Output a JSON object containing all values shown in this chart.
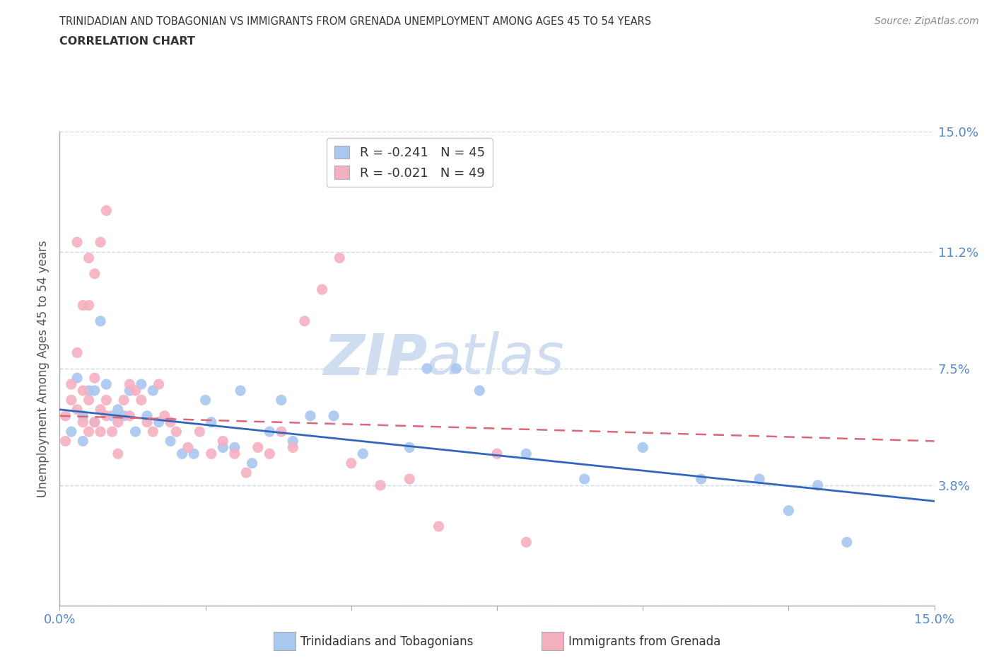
{
  "title_line1": "TRINIDADIAN AND TOBAGONIAN VS IMMIGRANTS FROM GRENADA UNEMPLOYMENT AMONG AGES 45 TO 54 YEARS",
  "title_line2": "CORRELATION CHART",
  "source_text": "Source: ZipAtlas.com",
  "ylabel": "Unemployment Among Ages 45 to 54 years",
  "xlim": [
    0.0,
    0.15
  ],
  "ylim": [
    0.0,
    0.15
  ],
  "ytick_values": [
    0.038,
    0.075,
    0.112,
    0.15
  ],
  "ytick_labels": [
    "3.8%",
    "7.5%",
    "11.2%",
    "15.0%"
  ],
  "grid_color": "#c8d8ec",
  "background_color": "#ffffff",
  "watermark_zip": "ZIP",
  "watermark_atlas": "atlas",
  "watermark_color": "#d0ddf0",
  "legend_r1": "R = -0.241",
  "legend_n1": "N = 45",
  "legend_r2": "R = -0.021",
  "legend_n2": "N = 49",
  "legend_color1": "#a8c8f0",
  "legend_color2": "#f5b0c0",
  "legend_text_color": "#4477cc",
  "series1_color": "#a8c8f0",
  "series2_color": "#f5b0c0",
  "trendline1_color": "#3366bb",
  "trendline2_color": "#dd6677",
  "trendline1_x": [
    0.0,
    0.15
  ],
  "trendline1_y": [
    0.062,
    0.033
  ],
  "trendline2_x": [
    0.0,
    0.15
  ],
  "trendline2_y": [
    0.06,
    0.052
  ],
  "scatter1_x": [
    0.002,
    0.003,
    0.004,
    0.004,
    0.005,
    0.006,
    0.006,
    0.007,
    0.008,
    0.009,
    0.01,
    0.011,
    0.012,
    0.013,
    0.014,
    0.015,
    0.016,
    0.017,
    0.019,
    0.021,
    0.023,
    0.025,
    0.026,
    0.028,
    0.03,
    0.031,
    0.033,
    0.036,
    0.038,
    0.04,
    0.043,
    0.047,
    0.052,
    0.06,
    0.063,
    0.068,
    0.072,
    0.08,
    0.09,
    0.1,
    0.11,
    0.12,
    0.125,
    0.13,
    0.135
  ],
  "scatter1_y": [
    0.055,
    0.072,
    0.06,
    0.052,
    0.068,
    0.058,
    0.068,
    0.09,
    0.07,
    0.06,
    0.062,
    0.06,
    0.068,
    0.055,
    0.07,
    0.06,
    0.068,
    0.058,
    0.052,
    0.048,
    0.048,
    0.065,
    0.058,
    0.05,
    0.05,
    0.068,
    0.045,
    0.055,
    0.065,
    0.052,
    0.06,
    0.06,
    0.048,
    0.05,
    0.075,
    0.075,
    0.068,
    0.048,
    0.04,
    0.05,
    0.04,
    0.04,
    0.03,
    0.038,
    0.02
  ],
  "scatter2_x": [
    0.001,
    0.001,
    0.002,
    0.002,
    0.003,
    0.003,
    0.004,
    0.004,
    0.005,
    0.005,
    0.006,
    0.006,
    0.007,
    0.007,
    0.008,
    0.008,
    0.009,
    0.01,
    0.01,
    0.011,
    0.012,
    0.012,
    0.013,
    0.014,
    0.015,
    0.016,
    0.017,
    0.018,
    0.019,
    0.02,
    0.022,
    0.024,
    0.026,
    0.028,
    0.03,
    0.032,
    0.034,
    0.036,
    0.038,
    0.04,
    0.042,
    0.045,
    0.048,
    0.05,
    0.055,
    0.06,
    0.065,
    0.075,
    0.08
  ],
  "scatter2_y": [
    0.06,
    0.052,
    0.065,
    0.07,
    0.062,
    0.08,
    0.068,
    0.058,
    0.065,
    0.055,
    0.058,
    0.072,
    0.062,
    0.055,
    0.06,
    0.065,
    0.055,
    0.058,
    0.048,
    0.065,
    0.06,
    0.07,
    0.068,
    0.065,
    0.058,
    0.055,
    0.07,
    0.06,
    0.058,
    0.055,
    0.05,
    0.055,
    0.048,
    0.052,
    0.048,
    0.042,
    0.05,
    0.048,
    0.055,
    0.05,
    0.09,
    0.1,
    0.11,
    0.045,
    0.038,
    0.04,
    0.025,
    0.048,
    0.02
  ],
  "scatter2_high_x": [
    0.003,
    0.004,
    0.005,
    0.005,
    0.006,
    0.007,
    0.008
  ],
  "scatter2_high_y": [
    0.115,
    0.095,
    0.11,
    0.095,
    0.105,
    0.115,
    0.125
  ]
}
